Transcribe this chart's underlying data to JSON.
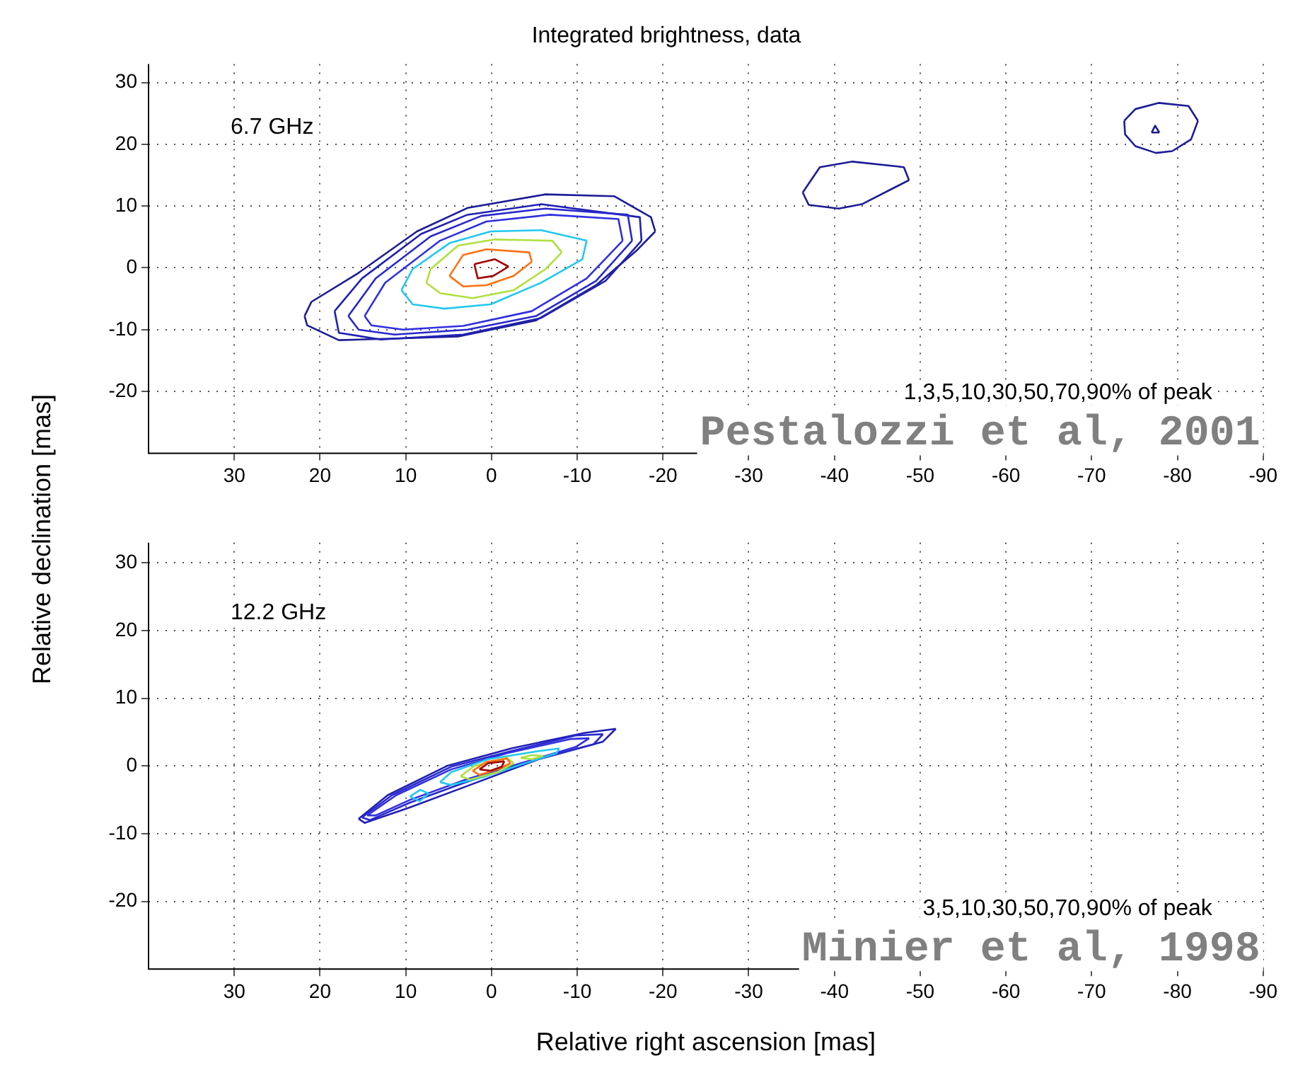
{
  "chart_data": [
    {
      "type": "line",
      "title": "Integrated brightness, data",
      "ylabel": "Relative declination [mas]",
      "xlim": [
        40,
        -90
      ],
      "xticks": [
        30,
        20,
        10,
        0,
        -10,
        -20,
        -30,
        -40,
        -50,
        -60,
        -70,
        -80,
        -90
      ],
      "ylim": [
        -30,
        33
      ],
      "yticks": [
        -20,
        -10,
        0,
        10,
        20,
        30
      ],
      "grid": true,
      "marker": "none",
      "line_style": "solid",
      "annotations": [
        "6.7 GHz",
        "1,3,5,10,30,50,70,90% of peak",
        "Pestalozzi et al, 2001"
      ],
      "series": [
        {
          "color": "#1c1c96",
          "x": [
            21.8,
            21.0,
            15.6,
            8.7,
            2.8,
            -6.3,
            -14.3,
            -18.6,
            -19.1
          ],
          "values": [
            -7.8,
            -5.5,
            -0.9,
            5.9,
            9.7,
            11.9,
            11.6,
            8.2,
            5.9
          ]
        },
        {
          "color": "#1c1c96",
          "x": [
            21.8,
            21.5,
            17.8,
            10.3,
            3.9,
            -5.2,
            -12.2,
            -17.0,
            -19.1
          ],
          "values": [
            -7.8,
            -9.3,
            -11.7,
            -11.4,
            -11.1,
            -8.5,
            -2.8,
            2.9,
            5.9
          ]
        },
        {
          "color": "#1c1c96",
          "x": [
            -36.3,
            -38.3,
            -42.1,
            -48.1,
            -48.7
          ],
          "values": [
            12.2,
            16.3,
            17.2,
            16.3,
            14.2
          ]
        },
        {
          "color": "#1c1c96",
          "x": [
            -36.3,
            -37.0,
            -40.5,
            -43.2,
            -47.0,
            -48.7
          ],
          "values": [
            12.2,
            10.2,
            9.6,
            10.3,
            13.0,
            14.2
          ]
        },
        {
          "color": "#1c1c96",
          "x": [
            -73.8,
            -75.1,
            -77.8,
            -81.3,
            -82.4
          ],
          "values": [
            23.8,
            25.7,
            26.7,
            26.2,
            23.8
          ]
        },
        {
          "color": "#1c1c96",
          "x": [
            -73.8,
            -73.9,
            -75.1,
            -77.5,
            -79.4,
            -81.6,
            -82.4
          ],
          "values": [
            23.8,
            21.6,
            19.7,
            18.6,
            18.9,
            20.8,
            23.8
          ]
        },
        {
          "color": "#1c1c96",
          "x": [
            -77.0,
            -77.4,
            -77.9
          ],
          "values": [
            21.9,
            23.0,
            21.9
          ]
        },
        {
          "color": "#1c1c96",
          "x": [
            -77.0,
            -77.9
          ],
          "values": [
            21.9,
            21.9
          ]
        },
        {
          "color": "#2020b4",
          "x": [
            18.3,
            15.1,
            8.2,
            2.8,
            -5.8,
            -17.3,
            -17.5
          ],
          "values": [
            -7.0,
            -1.7,
            5.5,
            8.6,
            10.3,
            8.2,
            4.4
          ]
        },
        {
          "color": "#2020b4",
          "x": [
            18.3,
            17.8,
            12.9,
            3.3,
            -5.8,
            -13.3,
            -17.5
          ],
          "values": [
            -7.0,
            -10.5,
            -11.6,
            -10.8,
            -8.1,
            -2.1,
            4.4
          ]
        },
        {
          "color": "#2828cc",
          "x": [
            16.7,
            13.5,
            7.1,
            1.2,
            -6.3,
            -15.9,
            -16.4
          ],
          "values": [
            -7.8,
            -1.7,
            5.1,
            8.4,
            9.6,
            8.6,
            4.4
          ]
        },
        {
          "color": "#2828cc",
          "x": [
            16.7,
            15.5,
            11.3,
            2.8,
            -5.2,
            -12.2,
            -16.4
          ],
          "values": [
            -7.8,
            -10.0,
            -10.8,
            -10.0,
            -7.8,
            -2.1,
            4.4
          ]
        },
        {
          "color": "#3030e0",
          "x": [
            14.8,
            12.4,
            6.0,
            0.6,
            -6.8,
            -14.8,
            -15.3
          ],
          "values": [
            -7.8,
            -2.4,
            4.4,
            7.5,
            8.6,
            7.9,
            4.4
          ]
        },
        {
          "color": "#3030e0",
          "x": [
            14.8,
            14.0,
            10.3,
            3.3,
            -4.7,
            -11.1,
            -15.3
          ],
          "values": [
            -7.8,
            -9.3,
            -10.0,
            -9.4,
            -7.0,
            -1.7,
            4.4
          ]
        },
        {
          "color": "#22c8f0",
          "x": [
            10.5,
            9.2,
            4.9,
            0.1,
            -5.8,
            -11.1
          ],
          "values": [
            -3.6,
            -0.2,
            4.0,
            5.9,
            6.1,
            4.4
          ]
        },
        {
          "color": "#22c8f0",
          "x": [
            10.5,
            9.2,
            5.5,
            0.1,
            -5.8,
            -10.6,
            -11.1
          ],
          "values": [
            -3.6,
            -5.9,
            -6.6,
            -5.9,
            -2.4,
            1.4,
            4.4
          ]
        },
        {
          "color": "#b0e040",
          "x": [
            7.6,
            7.1,
            3.9,
            -0.4,
            -7.1,
            -8.2
          ],
          "values": [
            -2.4,
            -0.2,
            3.6,
            4.6,
            4.4,
            2.5
          ]
        },
        {
          "color": "#b0e040",
          "x": [
            7.6,
            6.0,
            2.2,
            -2.6,
            -6.3,
            -8.2
          ],
          "values": [
            -2.4,
            -4.1,
            -4.9,
            -3.6,
            -0.2,
            2.5
          ]
        },
        {
          "color": "#ff7010",
          "x": [
            4.9,
            3.3,
            0.6,
            -4.4,
            -4.7
          ],
          "values": [
            -1.3,
            2.1,
            3.0,
            2.5,
            1.0
          ]
        },
        {
          "color": "#ff7010",
          "x": [
            4.9,
            3.3,
            0.6,
            -2.6,
            -4.7
          ],
          "values": [
            -1.3,
            -3.0,
            -2.8,
            -1.3,
            1.0
          ]
        },
        {
          "color": "#a00000",
          "x": [
            2.0,
            -0.4,
            -2.0
          ],
          "values": [
            0.6,
            1.4,
            0.2
          ]
        },
        {
          "color": "#a00000",
          "x": [
            2.0,
            1.6,
            -0.2,
            -2.0
          ],
          "values": [
            0.6,
            -1.7,
            -1.3,
            0.2
          ]
        }
      ]
    },
    {
      "type": "line",
      "xlabel": "Relative right ascension [mas]",
      "xlim": [
        40,
        -90
      ],
      "xticks": [
        30,
        20,
        10,
        0,
        -10,
        -20,
        -30,
        -40,
        -50,
        -60,
        -70,
        -80,
        -90
      ],
      "ylim": [
        -30,
        33
      ],
      "yticks": [
        -20,
        -10,
        0,
        10,
        20,
        30
      ],
      "grid": true,
      "marker": "none",
      "line_style": "solid",
      "annotations": [
        "12.2 GHz",
        "3,5,10,30,50,70,90% of peak",
        "Minier et al, 1998"
      ],
      "series": [
        {
          "color": "#2020b4",
          "x": [
            15.5,
            12.1,
            5.2,
            -2.3,
            -10.9,
            -14.5
          ],
          "values": [
            -7.8,
            -4.3,
            0,
            2.6,
            4.9,
            5.5
          ]
        },
        {
          "color": "#2020b4",
          "x": [
            15.5,
            14.8,
            9.5,
            2.5,
            -5.5,
            -13.0,
            -14.5
          ],
          "values": [
            -7.8,
            -8.4,
            -6.1,
            -2.8,
            1.0,
            3.6,
            5.5
          ]
        },
        {
          "color": "#2828cc",
          "x": [
            15.1,
            11.6,
            4.7,
            -2.3,
            -9.8,
            -13.0
          ],
          "values": [
            -7.6,
            -4.3,
            -0.1,
            2.2,
            4.5,
            4.7
          ]
        },
        {
          "color": "#2828cc",
          "x": [
            15.1,
            14.2,
            9.5,
            3.0,
            -4.4,
            -11.9,
            -13.0
          ],
          "values": [
            -7.6,
            -8.0,
            -5.4,
            -2.4,
            0.7,
            3.2,
            4.7
          ]
        },
        {
          "color": "#3030e0",
          "x": [
            14.5,
            11.1,
            4.7,
            -1.8,
            -9.3,
            -11.4
          ],
          "values": [
            -7.3,
            -4.3,
            -0.5,
            1.9,
            4.0,
            4.1
          ]
        },
        {
          "color": "#3030e0",
          "x": [
            14.5,
            13.5,
            9.5,
            3.0,
            -3.4,
            -9.8,
            -11.4
          ],
          "values": [
            -7.3,
            -7.3,
            -5.0,
            -2.0,
            0.4,
            2.8,
            4.1
          ]
        },
        {
          "color": "#22c8f0",
          "x": [
            6.0,
            4.7,
            0.4,
            -5.5,
            -7.9
          ],
          "values": [
            -2.4,
            -0.9,
            1.0,
            2.2,
            2.6
          ]
        },
        {
          "color": "#22c8f0",
          "x": [
            6.0,
            4.7,
            0.9,
            -3.4,
            -7.6,
            -7.9
          ],
          "values": [
            -2.4,
            -2.8,
            -1.6,
            0.2,
            1.9,
            2.6
          ]
        },
        {
          "color": "#22c8f0",
          "x": [
            9.5,
            8.3,
            7.3
          ],
          "values": [
            -4.5,
            -3.5,
            -4.1
          ]
        },
        {
          "color": "#22c8f0",
          "x": [
            9.5,
            8.4,
            7.3
          ],
          "values": [
            -4.5,
            -5.2,
            -4.1
          ]
        },
        {
          "color": "#b0e040",
          "x": [
            3.6,
            2.0,
            -1.8,
            -2.6
          ],
          "values": [
            -1.5,
            0,
            1.2,
            0.4
          ]
        },
        {
          "color": "#b0e040",
          "x": [
            3.6,
            2.5,
            -0.7,
            -2.6
          ],
          "values": [
            -1.5,
            -2.0,
            -0.9,
            0.4
          ]
        },
        {
          "color": "#b0e040",
          "x": [
            -3.4,
            -4.7,
            -6.0
          ],
          "values": [
            1.2,
            1.6,
            1.5
          ]
        },
        {
          "color": "#b0e040",
          "x": [
            -3.4,
            -4.7,
            -6.0
          ],
          "values": [
            1.2,
            1.0,
            1.5
          ]
        },
        {
          "color": "#ff7010",
          "x": [
            2.2,
            0.6,
            -1.8,
            -2.2
          ],
          "values": [
            -0.7,
            0.6,
            1.1,
            0.4
          ]
        },
        {
          "color": "#ff7010",
          "x": [
            2.2,
            1.4,
            -0.7,
            -2.2
          ],
          "values": [
            -0.7,
            -1.3,
            -0.5,
            0.4
          ]
        },
        {
          "color": "#a00000",
          "x": [
            1.4,
            0.4,
            -1.5
          ],
          "values": [
            -0.5,
            0.4,
            0.7
          ]
        },
        {
          "color": "#a00000",
          "x": [
            1.4,
            0.1,
            -1.2,
            -1.5
          ],
          "values": [
            -0.5,
            -0.7,
            -0.1,
            0.7
          ]
        }
      ]
    }
  ]
}
